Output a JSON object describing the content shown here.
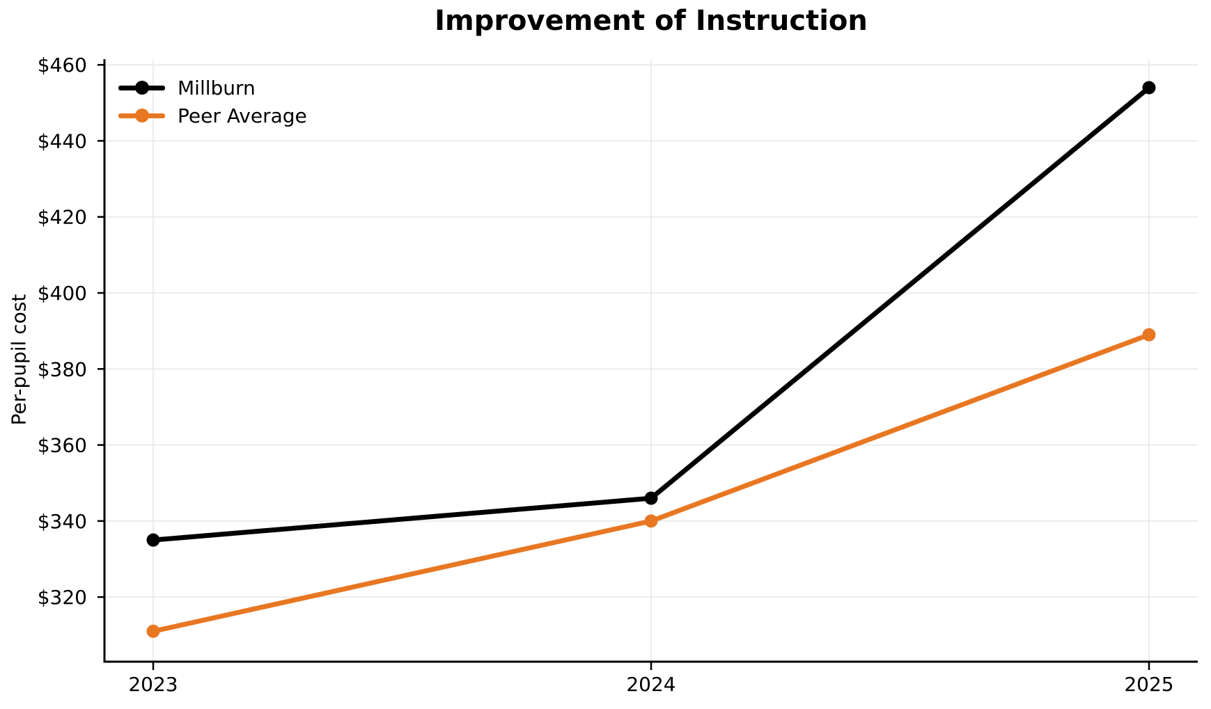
{
  "chart_data": {
    "type": "line",
    "title": "Improvement of Instruction",
    "xlabel": "",
    "ylabel": "Per-pupil cost",
    "categories": [
      "2023",
      "2024",
      "2025"
    ],
    "series": [
      {
        "name": "Millburn",
        "color": "#000000",
        "values": [
          335,
          346,
          454
        ]
      },
      {
        "name": "Peer Average",
        "color": "#e87722",
        "values": [
          311,
          340,
          389
        ]
      }
    ],
    "y_ticks": [
      320,
      340,
      360,
      380,
      400,
      420,
      440,
      460
    ],
    "y_tick_labels": [
      "$320",
      "$340",
      "$360",
      "$380",
      "$400",
      "$420",
      "$440",
      "$460"
    ],
    "ylim": [
      303,
      461.5
    ],
    "grid": true,
    "grid_color": "#e8e8e8",
    "axis_color": "#000000",
    "legend_position": "upper left"
  }
}
